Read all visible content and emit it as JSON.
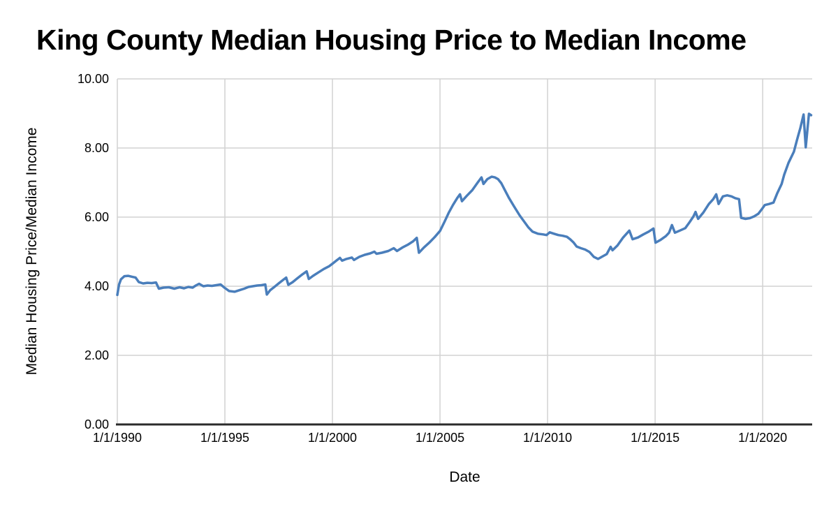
{
  "chart_data": {
    "type": "line",
    "title": "King County Median Housing Price to Median Income",
    "xlabel": "Date",
    "ylabel": "Median Housing Price/Median Income",
    "grid": true,
    "legend": "none",
    "x_axis": {
      "range": [
        1990.0,
        2022.3
      ],
      "ticks": [
        1990,
        1995,
        2000,
        2005,
        2010,
        2015,
        2020
      ],
      "tick_labels": [
        "1/1/1990",
        "1/1/1995",
        "1/1/2000",
        "1/1/2005",
        "1/1/2010",
        "1/1/2015",
        "1/1/2020"
      ]
    },
    "y_axis": {
      "range": [
        0,
        10
      ],
      "ticks": [
        0,
        2,
        4,
        6,
        8,
        10
      ],
      "tick_labels": [
        "0.00",
        "2.00",
        "4.00",
        "6.00",
        "8.00",
        "10.00"
      ]
    },
    "series": [
      {
        "color": "#4a7ebb",
        "points": [
          [
            1990.0,
            3.75
          ],
          [
            1990.08,
            4.05
          ],
          [
            1990.17,
            4.2
          ],
          [
            1990.33,
            4.29
          ],
          [
            1990.5,
            4.3
          ],
          [
            1990.7,
            4.27
          ],
          [
            1990.85,
            4.25
          ],
          [
            1991.0,
            4.12
          ],
          [
            1991.2,
            4.08
          ],
          [
            1991.4,
            4.1
          ],
          [
            1991.6,
            4.09
          ],
          [
            1991.8,
            4.11
          ],
          [
            1991.93,
            3.93
          ],
          [
            1992.15,
            3.96
          ],
          [
            1992.4,
            3.97
          ],
          [
            1992.65,
            3.93
          ],
          [
            1992.9,
            3.97
          ],
          [
            1993.1,
            3.94
          ],
          [
            1993.3,
            3.98
          ],
          [
            1993.5,
            3.96
          ],
          [
            1993.65,
            4.02
          ],
          [
            1993.8,
            4.07
          ],
          [
            1994.0,
            4.0
          ],
          [
            1994.2,
            4.02
          ],
          [
            1994.4,
            4.01
          ],
          [
            1994.6,
            4.03
          ],
          [
            1994.8,
            4.05
          ],
          [
            1995.0,
            3.95
          ],
          [
            1995.2,
            3.86
          ],
          [
            1995.45,
            3.84
          ],
          [
            1995.7,
            3.89
          ],
          [
            1995.9,
            3.93
          ],
          [
            1996.1,
            3.98
          ],
          [
            1996.3,
            4.0
          ],
          [
            1996.5,
            4.02
          ],
          [
            1996.7,
            4.03
          ],
          [
            1996.88,
            4.05
          ],
          [
            1996.95,
            3.76
          ],
          [
            1997.1,
            3.88
          ],
          [
            1997.3,
            3.98
          ],
          [
            1997.5,
            4.08
          ],
          [
            1997.7,
            4.18
          ],
          [
            1997.85,
            4.25
          ],
          [
            1997.95,
            4.04
          ],
          [
            1998.15,
            4.12
          ],
          [
            1998.35,
            4.22
          ],
          [
            1998.55,
            4.32
          ],
          [
            1998.8,
            4.43
          ],
          [
            1998.9,
            4.21
          ],
          [
            1999.1,
            4.3
          ],
          [
            1999.35,
            4.4
          ],
          [
            1999.6,
            4.5
          ],
          [
            1999.85,
            4.58
          ],
          [
            2000.0,
            4.65
          ],
          [
            2000.2,
            4.75
          ],
          [
            2000.35,
            4.82
          ],
          [
            2000.45,
            4.74
          ],
          [
            2000.65,
            4.79
          ],
          [
            2000.9,
            4.83
          ],
          [
            2001.0,
            4.76
          ],
          [
            2001.25,
            4.85
          ],
          [
            2001.5,
            4.91
          ],
          [
            2001.75,
            4.95
          ],
          [
            2001.95,
            5.0
          ],
          [
            2002.05,
            4.94
          ],
          [
            2002.3,
            4.97
          ],
          [
            2002.6,
            5.02
          ],
          [
            2002.85,
            5.1
          ],
          [
            2003.0,
            5.02
          ],
          [
            2003.25,
            5.12
          ],
          [
            2003.5,
            5.2
          ],
          [
            2003.75,
            5.3
          ],
          [
            2003.92,
            5.4
          ],
          [
            2004.02,
            4.97
          ],
          [
            2004.25,
            5.12
          ],
          [
            2004.5,
            5.26
          ],
          [
            2004.75,
            5.42
          ],
          [
            2005.0,
            5.6
          ],
          [
            2005.2,
            5.85
          ],
          [
            2005.4,
            6.12
          ],
          [
            2005.6,
            6.35
          ],
          [
            2005.8,
            6.55
          ],
          [
            2005.93,
            6.66
          ],
          [
            2006.02,
            6.46
          ],
          [
            2006.25,
            6.62
          ],
          [
            2006.5,
            6.78
          ],
          [
            2006.75,
            7.0
          ],
          [
            2006.93,
            7.15
          ],
          [
            2007.02,
            6.96
          ],
          [
            2007.2,
            7.1
          ],
          [
            2007.4,
            7.17
          ],
          [
            2007.55,
            7.15
          ],
          [
            2007.7,
            7.1
          ],
          [
            2007.85,
            6.98
          ],
          [
            2008.0,
            6.8
          ],
          [
            2008.2,
            6.56
          ],
          [
            2008.45,
            6.3
          ],
          [
            2008.7,
            6.05
          ],
          [
            2008.9,
            5.88
          ],
          [
            2009.1,
            5.71
          ],
          [
            2009.3,
            5.58
          ],
          [
            2009.55,
            5.52
          ],
          [
            2009.8,
            5.5
          ],
          [
            2009.95,
            5.48
          ],
          [
            2010.1,
            5.56
          ],
          [
            2010.3,
            5.52
          ],
          [
            2010.5,
            5.48
          ],
          [
            2010.7,
            5.46
          ],
          [
            2010.9,
            5.43
          ],
          [
            2011.05,
            5.36
          ],
          [
            2011.2,
            5.27
          ],
          [
            2011.35,
            5.15
          ],
          [
            2011.55,
            5.1
          ],
          [
            2011.75,
            5.06
          ],
          [
            2011.95,
            4.99
          ],
          [
            2012.15,
            4.85
          ],
          [
            2012.35,
            4.79
          ],
          [
            2012.55,
            4.86
          ],
          [
            2012.75,
            4.93
          ],
          [
            2012.93,
            5.14
          ],
          [
            2013.02,
            5.04
          ],
          [
            2013.25,
            5.18
          ],
          [
            2013.5,
            5.4
          ],
          [
            2013.8,
            5.61
          ],
          [
            2013.95,
            5.36
          ],
          [
            2014.2,
            5.41
          ],
          [
            2014.45,
            5.5
          ],
          [
            2014.7,
            5.58
          ],
          [
            2014.92,
            5.67
          ],
          [
            2015.02,
            5.26
          ],
          [
            2015.25,
            5.34
          ],
          [
            2015.5,
            5.45
          ],
          [
            2015.65,
            5.55
          ],
          [
            2015.78,
            5.77
          ],
          [
            2015.92,
            5.55
          ],
          [
            2016.15,
            5.61
          ],
          [
            2016.4,
            5.68
          ],
          [
            2016.6,
            5.85
          ],
          [
            2016.78,
            6.02
          ],
          [
            2016.88,
            6.15
          ],
          [
            2017.0,
            5.95
          ],
          [
            2017.25,
            6.14
          ],
          [
            2017.5,
            6.38
          ],
          [
            2017.7,
            6.52
          ],
          [
            2017.84,
            6.66
          ],
          [
            2017.95,
            6.38
          ],
          [
            2018.15,
            6.6
          ],
          [
            2018.35,
            6.63
          ],
          [
            2018.55,
            6.6
          ],
          [
            2018.72,
            6.55
          ],
          [
            2018.9,
            6.52
          ],
          [
            2019.0,
            5.98
          ],
          [
            2019.2,
            5.95
          ],
          [
            2019.4,
            5.97
          ],
          [
            2019.6,
            6.02
          ],
          [
            2019.8,
            6.1
          ],
          [
            2019.95,
            6.22
          ],
          [
            2020.1,
            6.35
          ],
          [
            2020.3,
            6.38
          ],
          [
            2020.5,
            6.42
          ],
          [
            2020.67,
            6.68
          ],
          [
            2020.88,
            6.96
          ],
          [
            2021.0,
            7.23
          ],
          [
            2021.2,
            7.57
          ],
          [
            2021.45,
            7.89
          ],
          [
            2021.6,
            8.24
          ],
          [
            2021.75,
            8.58
          ],
          [
            2021.9,
            8.97
          ],
          [
            2022.0,
            8.02
          ],
          [
            2022.15,
            8.99
          ],
          [
            2022.25,
            8.95
          ]
        ]
      }
    ]
  },
  "colors": {
    "line": "#4a7ebb",
    "grid": "#d2d2d2",
    "axis": "#2b2b2b",
    "text": "#000000",
    "background": "#ffffff"
  }
}
